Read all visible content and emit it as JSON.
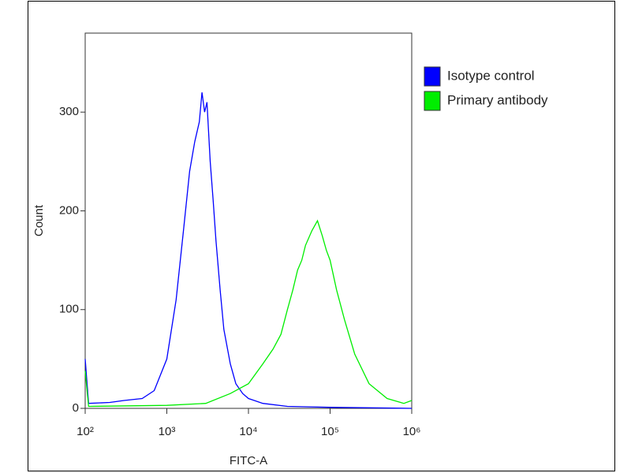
{
  "chart_data": {
    "type": "line",
    "x_label": "FITC-A",
    "y_label": "Count",
    "xscale": "log",
    "xlim": [
      100,
      1000000
    ],
    "xticks": [
      {
        "value": 100,
        "label": "10²"
      },
      {
        "value": 1000,
        "label": "10³"
      },
      {
        "value": 10000,
        "label": "10⁴"
      },
      {
        "value": 100000,
        "label": "10⁵"
      },
      {
        "value": 1000000,
        "label": "10⁶"
      }
    ],
    "ylim": [
      0,
      380
    ],
    "yticks": [
      0,
      100,
      200,
      300
    ],
    "legend": "right",
    "series": [
      {
        "name": "Isotype control",
        "color": "#0000ff",
        "x": [
          100,
          110,
          200,
          300,
          500,
          700,
          1000,
          1300,
          1600,
          1900,
          2200,
          2500,
          2700,
          2900,
          3100,
          3400,
          3700,
          4000,
          4500,
          5000,
          6000,
          7000,
          8500,
          10000,
          15000,
          30000,
          100000,
          1000000
        ],
        "values": [
          50,
          5,
          6,
          8,
          10,
          18,
          50,
          110,
          180,
          240,
          270,
          290,
          320,
          300,
          310,
          250,
          210,
          170,
          120,
          80,
          45,
          25,
          15,
          10,
          5,
          2,
          1,
          0
        ]
      },
      {
        "name": "Primary antibody",
        "color": "#00ee00",
        "x": [
          100,
          110,
          1000,
          3000,
          6000,
          10000,
          15000,
          20000,
          25000,
          30000,
          35000,
          40000,
          45000,
          50000,
          60000,
          70000,
          80000,
          90000,
          100000,
          120000,
          150000,
          200000,
          300000,
          500000,
          800000,
          1000000
        ],
        "values": [
          38,
          2,
          3,
          5,
          15,
          25,
          45,
          60,
          75,
          100,
          120,
          140,
          150,
          165,
          180,
          190,
          175,
          160,
          150,
          120,
          90,
          55,
          25,
          10,
          5,
          8
        ]
      }
    ]
  }
}
